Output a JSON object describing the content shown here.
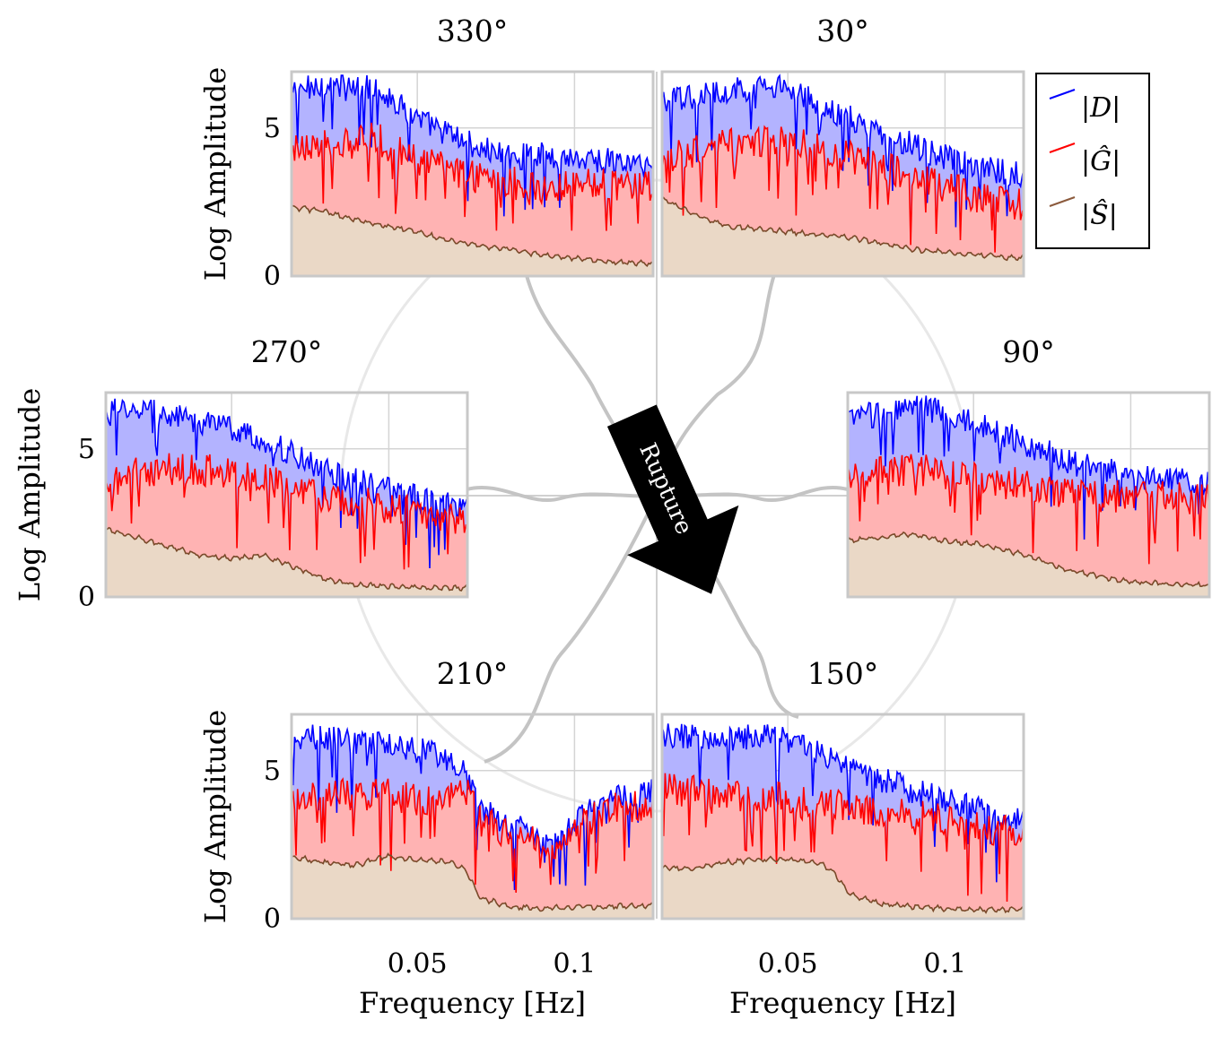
{
  "figure": {
    "rupture_label": "Rupture",
    "y_axis_label": "Log Amplitude",
    "x_axis_label": "Frequency [Hz]"
  },
  "legend": {
    "entries": [
      {
        "label": "|D|",
        "color": "#0000ff"
      },
      {
        "label": "|Ĝ|",
        "color": "#ff0000"
      },
      {
        "label": "|Ŝ|",
        "color": "#8b5a3c"
      }
    ]
  },
  "colors": {
    "D": "#0000ff",
    "G": "#ff0000",
    "S": "#7a4a2a",
    "D_fill": "#b3b3ff",
    "G_fill": "#ffb3b3",
    "S_fill": "#ead8c6"
  },
  "chart_data": [
    {
      "type": "area",
      "title": "330°",
      "ylabel": "Log Amplitude",
      "xlabel": "",
      "xlim": [
        0.01,
        0.125
      ],
      "ylim": [
        0,
        6.9
      ],
      "xticks": [
        0.05,
        0.1
      ],
      "yticks": [
        0,
        5
      ],
      "series": [
        {
          "name": "|D|",
          "x": [
            0.01,
            0.02,
            0.03,
            0.036,
            0.04,
            0.05,
            0.06,
            0.07,
            0.08,
            0.09,
            0.1,
            0.11,
            0.125
          ],
          "values": [
            6.2,
            6.5,
            6.3,
            6.4,
            6.1,
            5.3,
            4.8,
            4.3,
            4.0,
            4.1,
            4.0,
            3.9,
            3.7
          ]
        },
        {
          "name": "|Ĝ|",
          "x": [
            0.01,
            0.02,
            0.03,
            0.036,
            0.04,
            0.05,
            0.06,
            0.07,
            0.08,
            0.09,
            0.1,
            0.11,
            0.125
          ],
          "values": [
            4.3,
            4.5,
            4.4,
            4.8,
            4.4,
            3.9,
            3.6,
            3.3,
            3.2,
            3.0,
            3.1,
            3.1,
            3.0
          ]
        },
        {
          "name": "|Ŝ|",
          "x": [
            0.01,
            0.02,
            0.03,
            0.04,
            0.05,
            0.06,
            0.07,
            0.08,
            0.09,
            0.1,
            0.11,
            0.125
          ],
          "values": [
            2.3,
            2.2,
            1.9,
            1.7,
            1.5,
            1.2,
            1.0,
            0.9,
            0.7,
            0.6,
            0.5,
            0.4
          ]
        }
      ]
    },
    {
      "type": "area",
      "title": "30°",
      "ylabel": "",
      "xlabel": "",
      "xlim": [
        0.01,
        0.125
      ],
      "ylim": [
        0,
        6.9
      ],
      "xticks": [
        0.05,
        0.1
      ],
      "yticks": [
        0,
        5
      ],
      "series": [
        {
          "name": "|D|",
          "x": [
            0.01,
            0.02,
            0.03,
            0.04,
            0.05,
            0.06,
            0.07,
            0.08,
            0.09,
            0.1,
            0.11,
            0.125
          ],
          "values": [
            5.8,
            6.1,
            6.2,
            6.4,
            6.3,
            5.8,
            5.3,
            4.8,
            4.4,
            4.0,
            3.7,
            3.4
          ]
        },
        {
          "name": "|Ĝ|",
          "x": [
            0.01,
            0.02,
            0.03,
            0.04,
            0.05,
            0.06,
            0.07,
            0.08,
            0.09,
            0.1,
            0.11,
            0.125
          ],
          "values": [
            4.0,
            4.2,
            4.5,
            4.6,
            4.5,
            4.3,
            4.0,
            3.7,
            3.4,
            3.0,
            2.7,
            2.4
          ]
        },
        {
          "name": "|Ŝ|",
          "x": [
            0.01,
            0.02,
            0.03,
            0.04,
            0.05,
            0.06,
            0.07,
            0.08,
            0.09,
            0.1,
            0.11,
            0.125
          ],
          "values": [
            2.6,
            2.1,
            1.7,
            1.6,
            1.5,
            1.4,
            1.3,
            1.1,
            0.9,
            0.8,
            0.7,
            0.6
          ]
        }
      ]
    },
    {
      "type": "area",
      "title": "270°",
      "ylabel": "Log Amplitude",
      "xlabel": "",
      "xlim": [
        0.01,
        0.125
      ],
      "ylim": [
        0,
        6.9
      ],
      "xticks": [
        0.05,
        0.1
      ],
      "yticks": [
        0,
        5
      ],
      "series": [
        {
          "name": "|D|",
          "x": [
            0.01,
            0.02,
            0.03,
            0.04,
            0.05,
            0.06,
            0.07,
            0.08,
            0.09,
            0.1,
            0.11,
            0.125
          ],
          "values": [
            6.2,
            6.4,
            6.1,
            5.9,
            5.7,
            5.3,
            4.8,
            4.3,
            3.9,
            3.6,
            3.3,
            3.1
          ]
        },
        {
          "name": "|Ĝ|",
          "x": [
            0.01,
            0.02,
            0.03,
            0.04,
            0.05,
            0.06,
            0.07,
            0.08,
            0.09,
            0.1,
            0.11,
            0.125
          ],
          "values": [
            3.9,
            4.2,
            4.3,
            4.3,
            4.2,
            4.0,
            3.7,
            3.4,
            3.2,
            3.0,
            2.8,
            2.6
          ]
        },
        {
          "name": "|Ŝ|",
          "x": [
            0.01,
            0.02,
            0.03,
            0.04,
            0.05,
            0.06,
            0.07,
            0.08,
            0.09,
            0.1,
            0.11,
            0.125
          ],
          "values": [
            2.3,
            2.0,
            1.7,
            1.4,
            1.3,
            1.4,
            1.0,
            0.6,
            0.4,
            0.35,
            0.3,
            0.3
          ]
        }
      ]
    },
    {
      "type": "area",
      "title": "90°",
      "ylabel": "",
      "xlabel": "",
      "xlim": [
        0.01,
        0.125
      ],
      "ylim": [
        0,
        6.9
      ],
      "xticks": [
        0.05,
        0.1
      ],
      "yticks": [
        0,
        5
      ],
      "series": [
        {
          "name": "|D|",
          "x": [
            0.01,
            0.02,
            0.03,
            0.04,
            0.05,
            0.06,
            0.07,
            0.08,
            0.09,
            0.1,
            0.11,
            0.125
          ],
          "values": [
            6.0,
            6.2,
            6.4,
            6.3,
            5.9,
            5.5,
            5.0,
            4.6,
            4.3,
            4.1,
            4.0,
            3.8
          ]
        },
        {
          "name": "|Ĝ|",
          "x": [
            0.01,
            0.02,
            0.03,
            0.04,
            0.05,
            0.06,
            0.07,
            0.08,
            0.09,
            0.1,
            0.11,
            0.125
          ],
          "values": [
            3.9,
            4.2,
            4.3,
            4.2,
            4.0,
            3.9,
            3.7,
            3.5,
            3.4,
            3.4,
            3.4,
            3.3
          ]
        },
        {
          "name": "|Ŝ|",
          "x": [
            0.01,
            0.02,
            0.03,
            0.04,
            0.05,
            0.06,
            0.07,
            0.08,
            0.09,
            0.1,
            0.11,
            0.125
          ],
          "values": [
            1.9,
            2.0,
            2.1,
            1.9,
            1.8,
            1.6,
            1.3,
            0.9,
            0.7,
            0.5,
            0.45,
            0.4
          ]
        }
      ]
    },
    {
      "type": "area",
      "title": "210°",
      "ylabel": "Log Amplitude",
      "xlabel": "Frequency [Hz]",
      "xlim": [
        0.01,
        0.125
      ],
      "ylim": [
        0,
        6.9
      ],
      "xticks": [
        0.05,
        0.1
      ],
      "yticks": [
        0,
        5
      ],
      "series": [
        {
          "name": "|D|",
          "x": [
            0.01,
            0.02,
            0.03,
            0.04,
            0.05,
            0.06,
            0.065,
            0.07,
            0.08,
            0.09,
            0.095,
            0.1,
            0.11,
            0.125
          ],
          "values": [
            6.2,
            6.1,
            6.0,
            5.9,
            5.7,
            5.4,
            5.0,
            3.8,
            3.1,
            2.8,
            2.5,
            3.3,
            4.0,
            4.3
          ]
        },
        {
          "name": "|Ĝ|",
          "x": [
            0.01,
            0.02,
            0.03,
            0.04,
            0.05,
            0.06,
            0.065,
            0.07,
            0.08,
            0.09,
            0.095,
            0.1,
            0.11,
            0.125
          ],
          "values": [
            4.2,
            4.3,
            4.1,
            4.2,
            4.0,
            4.1,
            4.4,
            3.3,
            2.8,
            2.5,
            2.1,
            3.0,
            3.7,
            3.9
          ]
        },
        {
          "name": "|Ŝ|",
          "x": [
            0.01,
            0.02,
            0.03,
            0.04,
            0.05,
            0.06,
            0.065,
            0.07,
            0.08,
            0.09,
            0.1,
            0.11,
            0.125
          ],
          "values": [
            2.1,
            1.9,
            1.8,
            2.1,
            2.0,
            1.9,
            1.7,
            0.7,
            0.4,
            0.35,
            0.4,
            0.4,
            0.45
          ]
        }
      ]
    },
    {
      "type": "area",
      "title": "150°",
      "ylabel": "",
      "xlabel": "Frequency [Hz]",
      "xlim": [
        0.01,
        0.125
      ],
      "ylim": [
        0,
        6.9
      ],
      "xticks": [
        0.05,
        0.1
      ],
      "yticks": [
        0,
        5
      ],
      "series": [
        {
          "name": "|D|",
          "x": [
            0.01,
            0.02,
            0.03,
            0.04,
            0.05,
            0.06,
            0.07,
            0.08,
            0.09,
            0.1,
            0.11,
            0.125
          ],
          "values": [
            6.2,
            6.1,
            6.0,
            6.2,
            6.0,
            5.6,
            5.1,
            4.7,
            4.3,
            4.0,
            3.7,
            3.3
          ]
        },
        {
          "name": "|Ĝ|",
          "x": [
            0.01,
            0.02,
            0.03,
            0.04,
            0.05,
            0.06,
            0.07,
            0.08,
            0.09,
            0.1,
            0.11,
            0.125
          ],
          "values": [
            4.4,
            4.3,
            4.1,
            4.2,
            4.0,
            3.9,
            3.8,
            3.6,
            3.5,
            3.3,
            3.1,
            2.9
          ]
        },
        {
          "name": "|Ŝ|",
          "x": [
            0.01,
            0.02,
            0.03,
            0.04,
            0.05,
            0.06,
            0.065,
            0.07,
            0.08,
            0.09,
            0.1,
            0.11,
            0.125
          ],
          "values": [
            1.7,
            1.7,
            1.9,
            2.0,
            2.0,
            1.9,
            1.5,
            0.8,
            0.5,
            0.4,
            0.35,
            0.3,
            0.3
          ]
        }
      ]
    }
  ]
}
